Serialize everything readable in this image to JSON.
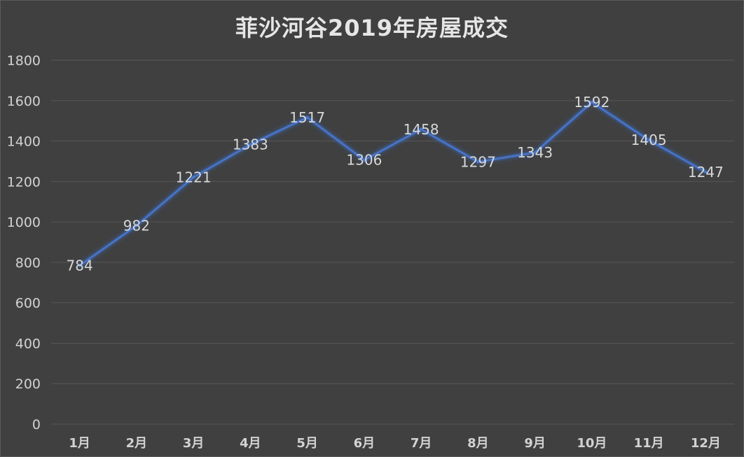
{
  "chart_data": {
    "type": "line",
    "title": "菲沙河谷2019年房屋成交",
    "categories": [
      "1月",
      "2月",
      "3月",
      "4月",
      "5月",
      "6月",
      "7月",
      "8月",
      "9月",
      "10月",
      "11月",
      "12月"
    ],
    "series": [
      {
        "values": [
          784,
          982,
          1221,
          1383,
          1517,
          1306,
          1458,
          1297,
          1343,
          1592,
          1405,
          1247
        ]
      }
    ],
    "ylim": [
      0,
      1800
    ],
    "yticks": [
      0,
      200,
      400,
      600,
      800,
      1000,
      1200,
      1400,
      1600,
      1800
    ],
    "grid": true,
    "data_labels": true,
    "colors": {
      "background": "#404040",
      "line": "#4a78d0",
      "glow": "#3d6cc9",
      "grid": "#575757",
      "text": "#d2d2d2"
    }
  }
}
